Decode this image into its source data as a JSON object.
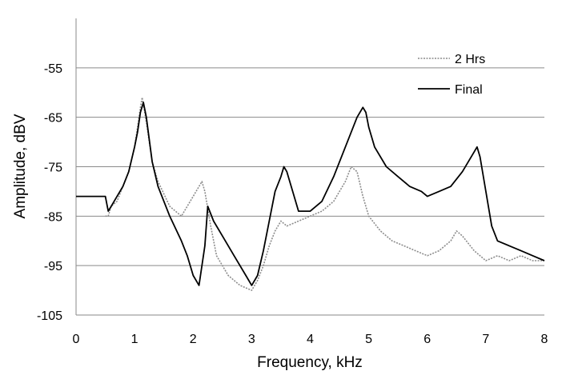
{
  "chart_data": {
    "type": "line",
    "title": "",
    "xlabel": "Frequency, kHz",
    "ylabel": "Amplitude, dBV",
    "xlim": [
      0,
      8
    ],
    "ylim": [
      -105,
      -45
    ],
    "x_ticks": [
      "0",
      "1",
      "2",
      "3",
      "4",
      "5",
      "6",
      "7",
      "8"
    ],
    "y_ticks": [
      "-55",
      "-65",
      "-75",
      "-85",
      "-95",
      "-105"
    ],
    "grid": "horizontal",
    "legend_position": "top-right",
    "series": [
      {
        "name": "2 Hrs",
        "color": "#8c8c8c",
        "style": "dotted",
        "x": [
          0.5,
          0.55,
          0.6,
          0.7,
          0.8,
          0.9,
          1.0,
          1.05,
          1.1,
          1.13,
          1.2,
          1.3,
          1.4,
          1.6,
          1.8,
          1.9,
          2.0,
          2.1,
          2.15,
          2.2,
          2.3,
          2.4,
          2.6,
          2.8,
          3.0,
          3.1,
          3.2,
          3.3,
          3.4,
          3.5,
          3.6,
          3.8,
          4.0,
          4.2,
          4.4,
          4.6,
          4.7,
          4.8,
          4.9,
          5.0,
          5.2,
          5.4,
          5.6,
          5.8,
          6.0,
          6.2,
          6.4,
          6.5,
          6.6,
          6.8,
          7.0,
          7.2,
          7.4,
          7.6,
          7.8,
          8.0
        ],
        "y": [
          -85,
          -85,
          -83,
          -82,
          -79,
          -76,
          -71,
          -67,
          -63,
          -61,
          -66,
          -74,
          -78,
          -83,
          -85,
          -83,
          -81,
          -79,
          -78,
          -80,
          -87,
          -93,
          -97,
          -99,
          -100,
          -98,
          -95,
          -91,
          -88,
          -86,
          -87,
          -86,
          -85,
          -84,
          -82,
          -78,
          -75,
          -76,
          -81,
          -85,
          -88,
          -90,
          -91,
          -92,
          -93,
          -92,
          -90,
          -88,
          -89,
          -92,
          -94,
          -93,
          -94,
          -93,
          -94,
          -94
        ]
      },
      {
        "name": "Final",
        "color": "#000000",
        "style": "solid",
        "x": [
          0.0,
          0.5,
          0.55,
          0.6,
          0.7,
          0.8,
          0.9,
          1.0,
          1.05,
          1.1,
          1.15,
          1.2,
          1.3,
          1.4,
          1.6,
          1.8,
          1.9,
          2.0,
          2.1,
          2.2,
          2.25,
          2.35,
          2.5,
          2.7,
          2.9,
          3.0,
          3.1,
          3.2,
          3.3,
          3.4,
          3.5,
          3.55,
          3.6,
          3.7,
          3.8,
          4.0,
          4.2,
          4.4,
          4.6,
          4.8,
          4.9,
          4.95,
          5.0,
          5.1,
          5.3,
          5.5,
          5.7,
          5.9,
          6.0,
          6.2,
          6.4,
          6.6,
          6.8,
          6.85,
          6.9,
          7.0,
          7.1,
          7.2,
          7.4,
          7.6,
          7.8,
          8.0
        ],
        "y": [
          -81,
          -81,
          -84,
          -83,
          -81,
          -79,
          -76,
          -71,
          -68,
          -64,
          -62,
          -65,
          -74,
          -79,
          -85,
          -90,
          -93,
          -97,
          -99,
          -91,
          -83,
          -86,
          -89,
          -93,
          -97,
          -99,
          -97,
          -92,
          -86,
          -80,
          -77,
          -75,
          -76,
          -80,
          -84,
          -84,
          -82,
          -77,
          -71,
          -65,
          -63,
          -64,
          -67,
          -71,
          -75,
          -77,
          -79,
          -80,
          -81,
          -80,
          -79,
          -76,
          -72,
          -71,
          -73,
          -80,
          -87,
          -90,
          -91,
          -92,
          -93,
          -94
        ]
      }
    ]
  }
}
